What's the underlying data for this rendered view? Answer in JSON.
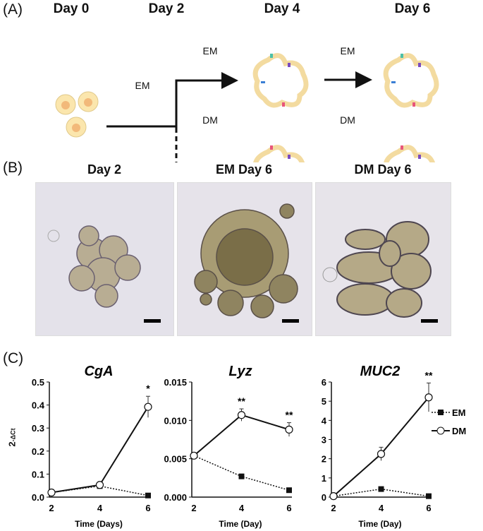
{
  "panel_a": {
    "label": "(A)",
    "days": [
      "Day 0",
      "Day 2",
      "Day 4",
      "Day 6"
    ],
    "arrow_labels": {
      "initial": "EM",
      "upper_1": "EM",
      "lower_1": "DM",
      "upper_2": "EM",
      "lower_2": "DM"
    }
  },
  "panel_b": {
    "label": "(B)",
    "images": [
      {
        "title": "Day 2"
      },
      {
        "title": "EM Day 6"
      },
      {
        "title": "DM Day 6"
      }
    ]
  },
  "panel_c": {
    "label": "(C)"
  },
  "chart_data": [
    {
      "type": "line",
      "title": "CgA",
      "xlabel": "Time (Days)",
      "ylabel": "2-ΔCt",
      "x": [
        2,
        4,
        6
      ],
      "xticks": [
        "2",
        "4",
        "6"
      ],
      "ylim": [
        0,
        0.5
      ],
      "yticks": [
        "0.0",
        "0.1",
        "0.2",
        "0.3",
        "0.4",
        "0.5"
      ],
      "series": [
        {
          "name": "EM",
          "values": [
            0.02,
            0.048,
            0.007
          ],
          "errors": [
            0.005,
            0.005,
            0.003
          ]
        },
        {
          "name": "DM",
          "values": [
            0.02,
            0.053,
            0.392
          ],
          "errors": [
            0.005,
            0.006,
            0.046
          ]
        }
      ],
      "annotations": [
        {
          "x": 6,
          "text": "*"
        }
      ]
    },
    {
      "type": "line",
      "title": "Lyz",
      "xlabel": "Time (Day)",
      "ylabel": "",
      "x": [
        2,
        4,
        6
      ],
      "xticks": [
        "2",
        "4",
        "6"
      ],
      "ylim": [
        0,
        0.015
      ],
      "yticks": [
        "0.000",
        "0.005",
        "0.010",
        "0.015"
      ],
      "series": [
        {
          "name": "EM",
          "values": [
            0.0054,
            0.0027,
            0.0009
          ],
          "errors": [
            0.0002,
            0.0003,
            0.0001
          ]
        },
        {
          "name": "DM",
          "values": [
            0.0054,
            0.0107,
            0.0088
          ],
          "errors": [
            0.0003,
            0.0008,
            0.0009
          ]
        }
      ],
      "annotations": [
        {
          "x": 4,
          "text": "**"
        },
        {
          "x": 6,
          "text": "**"
        }
      ]
    },
    {
      "type": "line",
      "title": "MUC2",
      "xlabel": "Time (Day)",
      "ylabel": "",
      "x": [
        2,
        4,
        6
      ],
      "xticks": [
        "2",
        "4",
        "6"
      ],
      "ylim": [
        0,
        6
      ],
      "yticks": [
        "0",
        "1",
        "2",
        "3",
        "4",
        "5",
        "6"
      ],
      "series": [
        {
          "name": "EM",
          "values": [
            0.05,
            0.42,
            0.05
          ],
          "errors": [
            0.02,
            0.05,
            0.02
          ]
        },
        {
          "name": "DM",
          "values": [
            0.05,
            2.25,
            5.2
          ],
          "errors": [
            0.02,
            0.35,
            0.75
          ]
        }
      ],
      "annotations": [
        {
          "x": 6,
          "text": "**"
        }
      ]
    }
  ],
  "legend": {
    "items": [
      "EM",
      "DM"
    ],
    "placement": "right"
  }
}
